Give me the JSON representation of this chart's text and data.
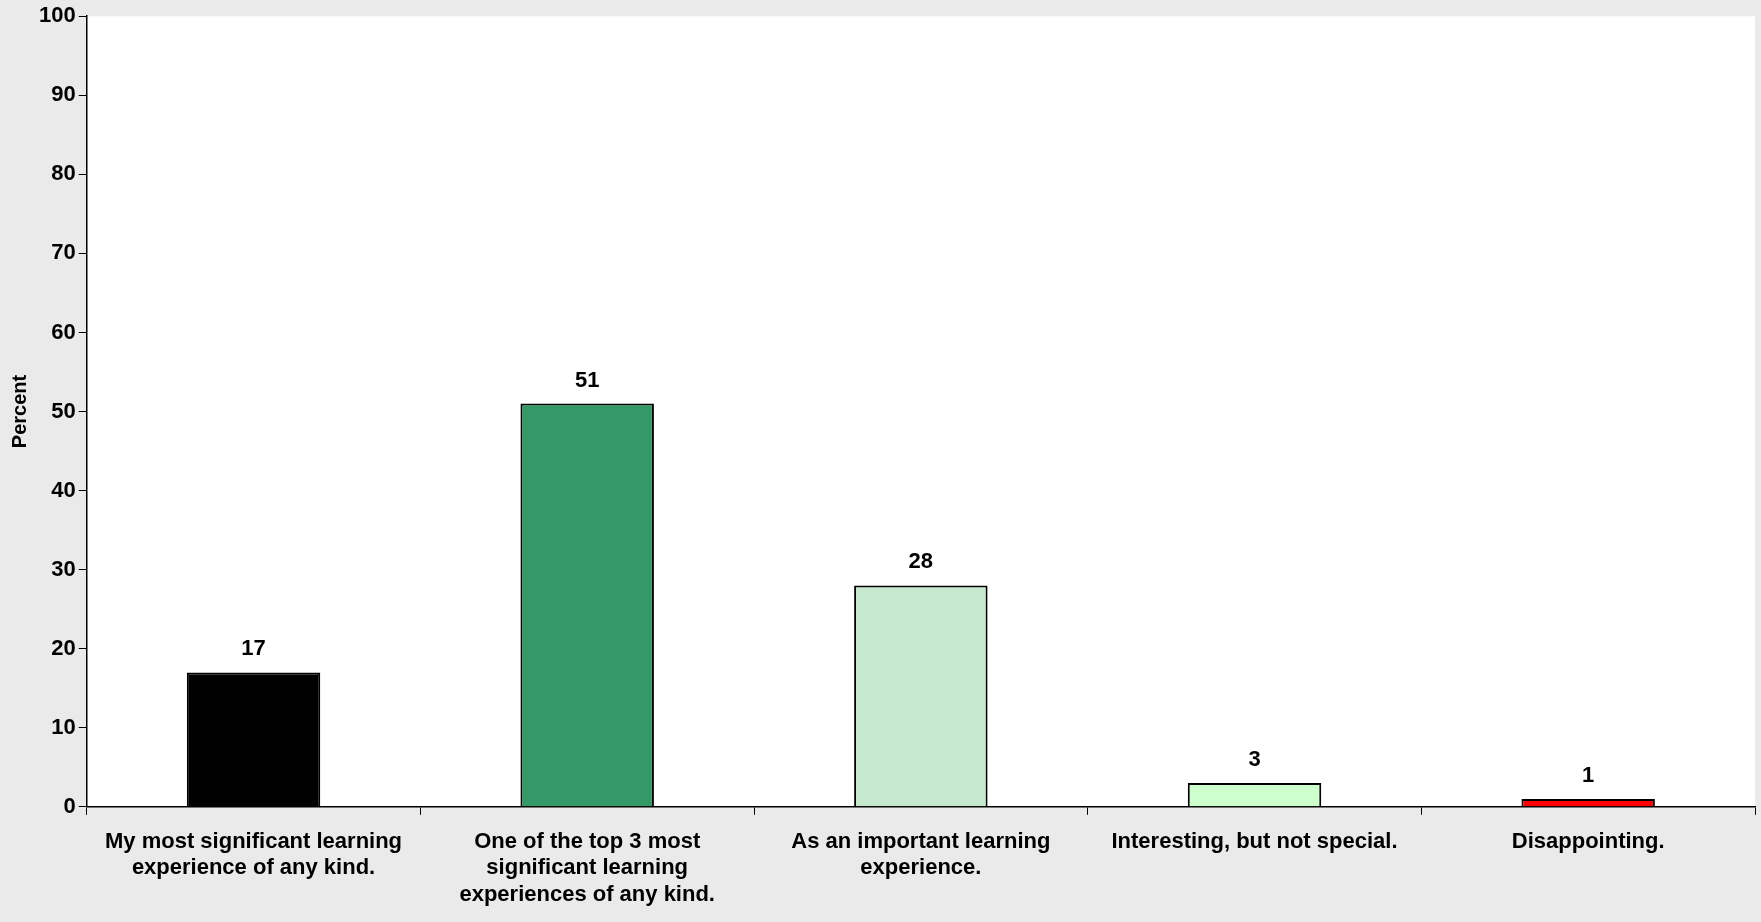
{
  "chart_data": {
    "type": "bar",
    "ylabel": "Percent",
    "categories": [
      "My most significant learning experience of any kind.",
      "One of the top 3 most significant learning experiences of any kind.",
      "As an important learning experience.",
      "Interesting, but not special.",
      "Disappointing."
    ],
    "values": [
      17,
      51,
      28,
      3,
      1
    ],
    "colors": [
      "#000000",
      "#339966",
      "#c6e8cc",
      "#ccffcc",
      "#ff0000"
    ],
    "ylim": [
      0,
      100
    ],
    "yticks": [
      0,
      10,
      20,
      30,
      40,
      50,
      60,
      70,
      80,
      90,
      100
    ],
    "grid": false,
    "legend": false,
    "data_labels": true
  }
}
